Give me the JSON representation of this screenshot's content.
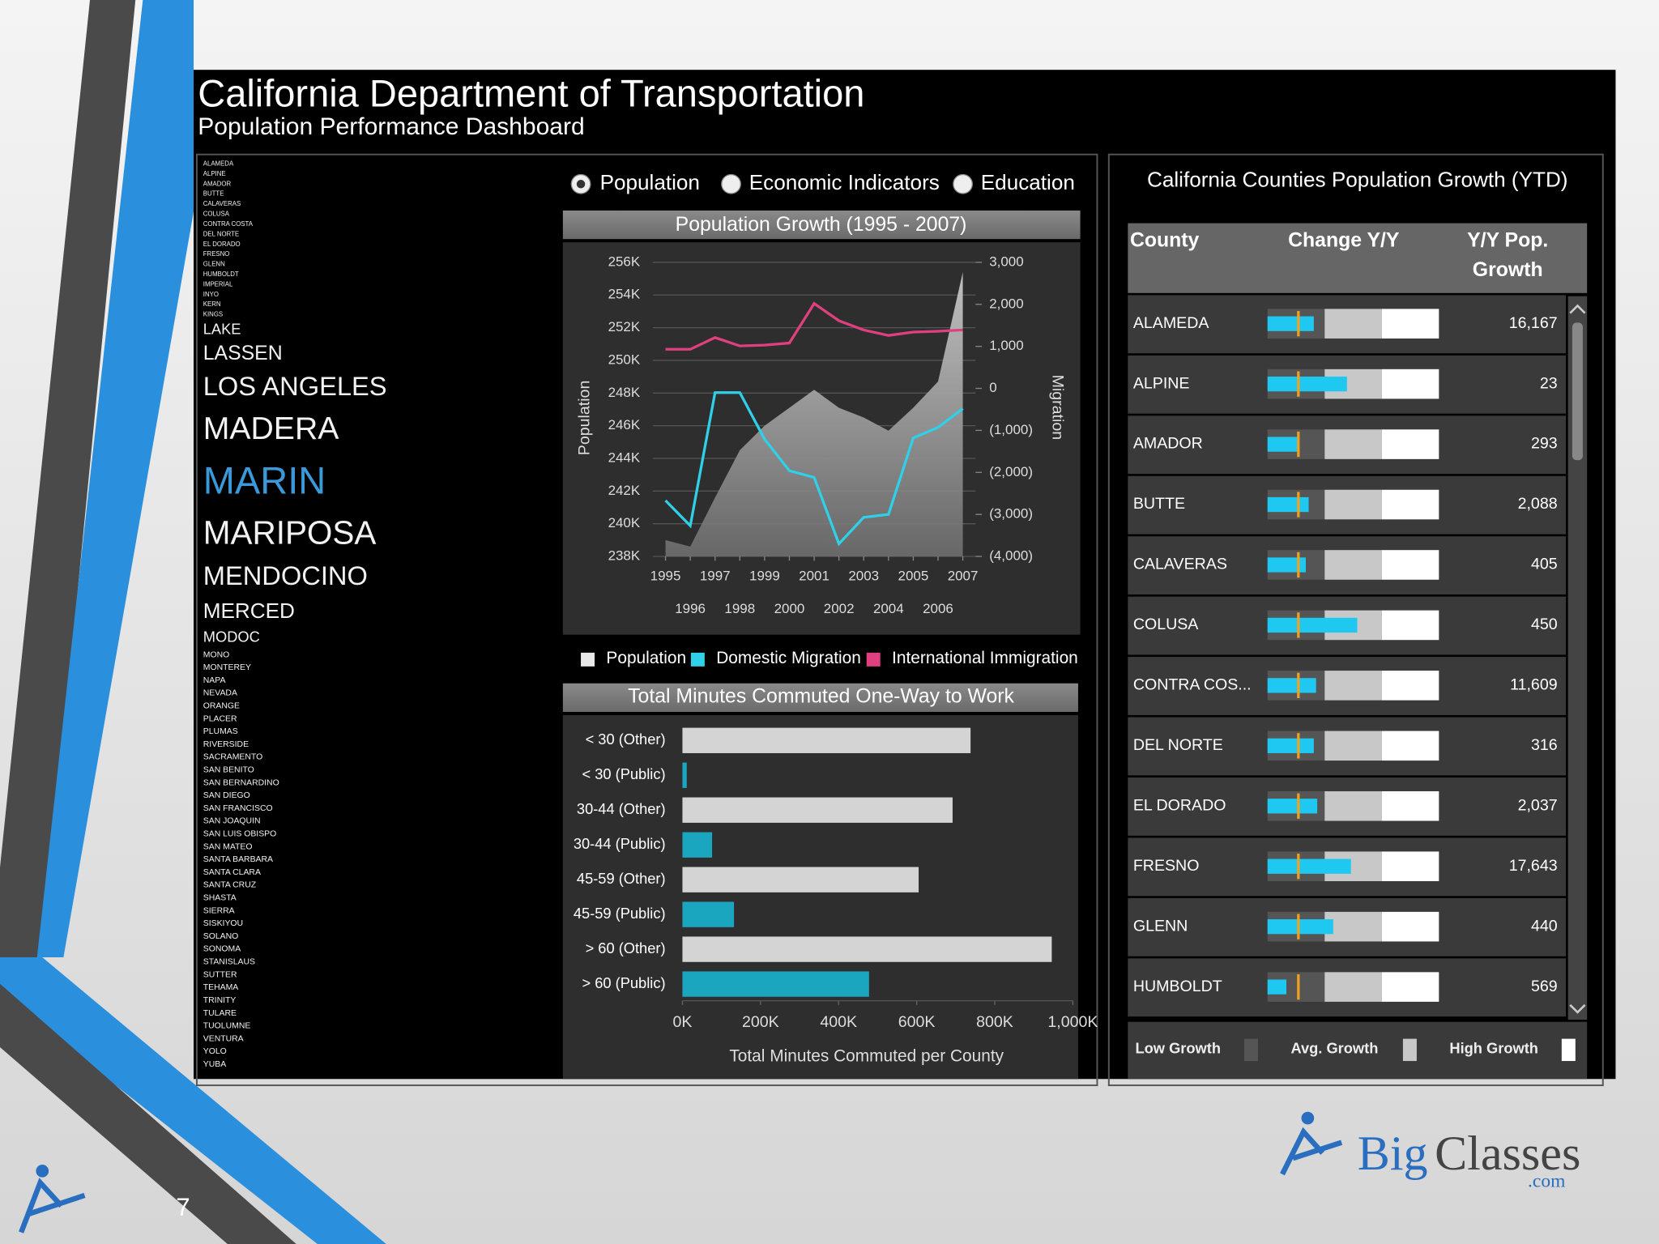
{
  "header": {
    "title": "California Department of Transportation",
    "subtitle": "Population Performance Dashboard"
  },
  "county_list": [
    "ALAMEDA",
    "ALPINE",
    "AMADOR",
    "BUTTE",
    "CALAVERAS",
    "COLUSA",
    "CONTRA COSTA",
    "DEL NORTE",
    "EL DORADO",
    "FRESNO",
    "GLENN",
    "HUMBOLDT",
    "IMPERIAL",
    "INYO",
    "KERN",
    "KINGS",
    "LAKE",
    "LASSEN",
    "LOS ANGELES",
    "MADERA",
    "MARIN",
    "MARIPOSA",
    "MENDOCINO",
    "MERCED",
    "MODOC",
    "MONO",
    "MONTEREY",
    "NAPA",
    "NEVADA",
    "ORANGE",
    "PLACER",
    "PLUMAS",
    "RIVERSIDE",
    "SACRAMENTO",
    "SAN BENITO",
    "SAN BERNARDINO",
    "SAN DIEGO",
    "SAN FRANCISCO",
    "SAN JOAQUIN",
    "SAN LUIS OBISPO",
    "SAN MATEO",
    "SANTA BARBARA",
    "SANTA CLARA",
    "SANTA CRUZ",
    "SHASTA",
    "SIERRA",
    "SISKIYOU",
    "SOLANO",
    "SONOMA",
    "STANISLAUS",
    "SUTTER",
    "TEHAMA",
    "TRINITY",
    "TULARE",
    "TUOLUMNE",
    "VENTURA",
    "YOLO",
    "YUBA"
  ],
  "options": [
    "Population",
    "Economic Indicators",
    "Education"
  ],
  "chart_data": [
    {
      "type": "line",
      "title": "Population Growth (1995 - 2007)",
      "ylabel": "Population",
      "y2label": "Migration",
      "x": [
        1995,
        1996,
        1997,
        1998,
        1999,
        2000,
        2001,
        2002,
        2003,
        2004,
        2005,
        2006,
        2007
      ],
      "xlim": [
        1995,
        2007
      ],
      "xticks": [
        1995,
        1996,
        1997,
        1998,
        1999,
        2000,
        2001,
        2002,
        2003,
        2004,
        2005,
        2006,
        2007
      ],
      "ylim": [
        238000,
        256000
      ],
      "yticks": [
        {
          "value": 238000,
          "label": "238K"
        },
        {
          "value": 240000,
          "label": "240K"
        },
        {
          "value": 242000,
          "label": "242K"
        },
        {
          "value": 244000,
          "label": "244K"
        },
        {
          "value": 246000,
          "label": "246K"
        },
        {
          "value": 248000,
          "label": "248K"
        },
        {
          "value": 250000,
          "label": "250K"
        },
        {
          "value": 252000,
          "label": "252K"
        },
        {
          "value": 254000,
          "label": "254K"
        },
        {
          "value": 256000,
          "label": "256K"
        }
      ],
      "y2lim": [
        -4000,
        3000
      ],
      "y2ticks": [
        {
          "value": -4000,
          "label": "(4,000)"
        },
        {
          "value": -3000,
          "label": "(3,000)"
        },
        {
          "value": -2000,
          "label": "(2,000)"
        },
        {
          "value": -1000,
          "label": "(1,000)"
        },
        0,
        {
          "value": 1000,
          "label": "1,000"
        },
        {
          "value": 2000,
          "label": "2,000"
        },
        {
          "value": 3000,
          "label": "3,000"
        }
      ],
      "grid": true,
      "series": [
        {
          "name": "Population",
          "type": "area",
          "color": "#e8e8e8",
          "values": [
            239000,
            238600,
            241600,
            244500,
            246000,
            247100,
            248200,
            247100,
            246500,
            245700,
            247100,
            248700,
            255400
          ]
        },
        {
          "name": "Domestic Migration",
          "color": "#2fd0e8",
          "axis": "y2",
          "values": [
            -2670,
            -3270,
            -100,
            -100,
            -1210,
            -1960,
            -2120,
            -3700,
            -3070,
            -3000,
            -1180,
            -930,
            -480
          ]
        },
        {
          "name": "International Immigration",
          "color": "#e0407f",
          "axis": "y2",
          "values": [
            930,
            930,
            1210,
            1010,
            1030,
            1080,
            2020,
            1610,
            1390,
            1260,
            1340,
            1360,
            1390
          ]
        }
      ]
    },
    {
      "type": "bar",
      "orientation": "horizontal",
      "title": "Total Minutes Commuted One-Way to Work",
      "categories": [
        "< 30 (Other)",
        "< 30 (Public)",
        "30-44 (Other)",
        "30-44 (Public)",
        "45-59 (Other)",
        "45-59 (Public)",
        "> 60 (Other)",
        "> 60 (Public)"
      ],
      "values": [
        738000,
        11000,
        692000,
        76000,
        605000,
        132000,
        946000,
        478000
      ],
      "colors": [
        "#d4d4d4",
        "#1aa6bf",
        "#d4d4d4",
        "#1aa6bf",
        "#d4d4d4",
        "#1aa6bf",
        "#d4d4d4",
        "#1aa6bf"
      ],
      "xlim": [
        0,
        1000000
      ],
      "xticks": [
        {
          "value": 0,
          "label": "0K"
        },
        {
          "value": 200000,
          "label": "200K"
        },
        {
          "value": 400000,
          "label": "400K"
        },
        {
          "value": 600000,
          "label": "600K"
        },
        {
          "value": 800000,
          "label": "800K"
        },
        {
          "value": 1000000,
          "label": "1,000K"
        }
      ],
      "xlabel": "Total Minutes Commuted per County"
    }
  ],
  "table": {
    "title": "California Counties Population Growth (YTD)",
    "columns": [
      "County",
      "Change Y/Y",
      "Y/Y Pop. Growth"
    ],
    "change_range": [
      0,
      3
    ],
    "bands": [
      1,
      2,
      3
    ],
    "band_labels": [
      "Low Growth",
      "Avg. Growth",
      "High Growth"
    ],
    "target": 0.54,
    "change_color": "#1ec8f0",
    "target_color": "#f0a020",
    "rows": [
      {
        "county": "ALAMEDA",
        "change": 0.81,
        "growth": "16,167"
      },
      {
        "county": "ALPINE",
        "change": 1.39,
        "growth": "23"
      },
      {
        "county": "AMADOR",
        "change": 0.54,
        "growth": "293"
      },
      {
        "county": "BUTTE",
        "change": 0.72,
        "growth": "2,088"
      },
      {
        "county": "CALAVERAS",
        "change": 0.67,
        "growth": "405"
      },
      {
        "county": "COLUSA",
        "change": 1.57,
        "growth": "450"
      },
      {
        "county": "CONTRA COS...",
        "change": 0.85,
        "growth": "11,609"
      },
      {
        "county": "DEL NORTE",
        "change": 0.81,
        "growth": "316"
      },
      {
        "county": "EL DORADO",
        "change": 0.87,
        "growth": "2,037"
      },
      {
        "county": "FRESNO",
        "change": 1.46,
        "growth": "17,643"
      },
      {
        "county": "GLENN",
        "change": 1.15,
        "growth": "440"
      },
      {
        "county": "HUMBOLDT",
        "change": 0.33,
        "growth": "569"
      }
    ]
  },
  "logo": {
    "brand_first": "Big",
    "brand_second": "Classes",
    "domain": ".com"
  },
  "slide_number": "7"
}
